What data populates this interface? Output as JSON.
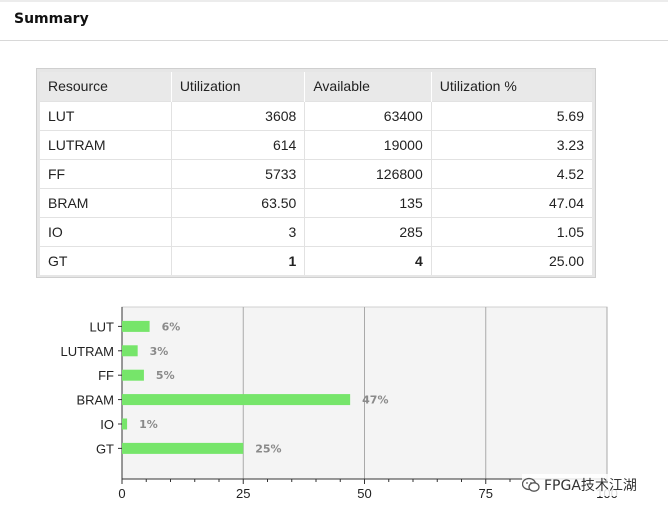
{
  "header": {
    "title": "Summary"
  },
  "table": {
    "columns": [
      "Resource",
      "Utilization",
      "Available",
      "Utilization %"
    ],
    "rows": [
      {
        "resource": "LUT",
        "utilization": "3608",
        "available": "63400",
        "percent": "5.69"
      },
      {
        "resource": "LUTRAM",
        "utilization": "614",
        "available": "19000",
        "percent": "3.23"
      },
      {
        "resource": "FF",
        "utilization": "5733",
        "available": "126800",
        "percent": "4.52"
      },
      {
        "resource": "BRAM",
        "utilization": "63.50",
        "available": "135",
        "percent": "47.04"
      },
      {
        "resource": "IO",
        "utilization": "3",
        "available": "285",
        "percent": "1.05"
      },
      {
        "resource": "GT",
        "utilization": "1",
        "available": "4",
        "percent": "25.00"
      }
    ]
  },
  "chart_data": {
    "type": "bar",
    "orientation": "horizontal",
    "categories": [
      "LUT",
      "LUTRAM",
      "FF",
      "BRAM",
      "IO",
      "GT"
    ],
    "values": [
      5.69,
      3.23,
      4.52,
      47.04,
      1.05,
      25.0
    ],
    "data_labels": [
      "6%",
      "3%",
      "5%",
      "47%",
      "1%",
      "25%"
    ],
    "xlim": [
      0,
      100
    ],
    "xticks": [
      "0",
      "25",
      "50",
      "75",
      "100"
    ],
    "grid": true,
    "bar_color": "#76e56a",
    "plot_background": "#f4f4f4"
  },
  "watermark": {
    "text": "FPGA技术江湖"
  }
}
